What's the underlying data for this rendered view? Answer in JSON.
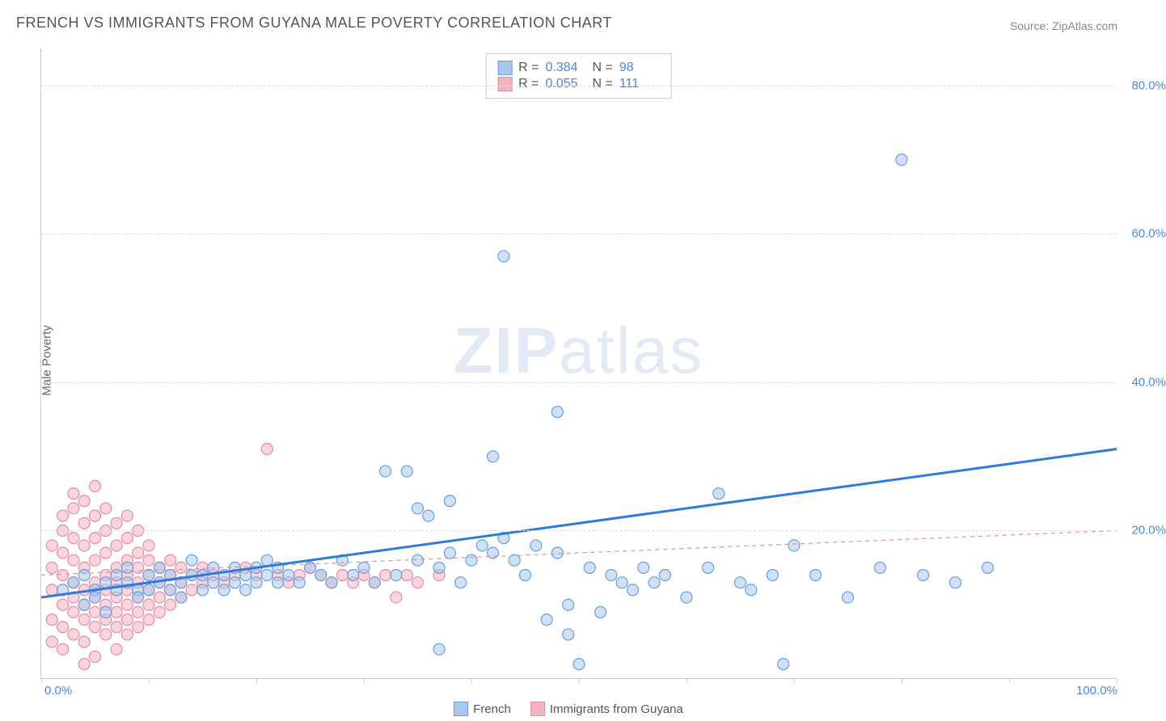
{
  "title": "FRENCH VS IMMIGRANTS FROM GUYANA MALE POVERTY CORRELATION CHART",
  "source": "Source: ZipAtlas.com",
  "y_axis_label": "Male Poverty",
  "watermark_bold": "ZIP",
  "watermark_light": "atlas",
  "chart": {
    "type": "scatter",
    "xlim": [
      0,
      100
    ],
    "ylim": [
      0,
      85
    ],
    "x_axis_start_label": "0.0%",
    "x_axis_end_label": "100.0%",
    "y_ticks": [
      20,
      40,
      60,
      80
    ],
    "y_tick_labels": [
      "20.0%",
      "40.0%",
      "60.0%",
      "80.0%"
    ],
    "x_tick_positions": [
      0,
      10,
      20,
      30,
      40,
      50,
      60,
      70,
      80,
      90,
      100
    ],
    "background_color": "#ffffff",
    "grid_color": "#dddddd",
    "axis_color": "#cccccc",
    "marker_radius": 7,
    "marker_stroke_width": 1.2,
    "trendline_width": 3,
    "trendline_dash_width": 1.2,
    "series": [
      {
        "name": "French",
        "fill": "#a9c7ec",
        "stroke": "#6b9fd9",
        "fill_opacity": 0.55,
        "trendline": {
          "x1": 0,
          "y1": 11,
          "x2": 100,
          "y2": 31,
          "color": "#2f7bd8",
          "dashed": false
        },
        "R_label": "R =",
        "R_value": "0.384",
        "N_label": "N =",
        "N_value": "98",
        "points": [
          [
            2,
            12
          ],
          [
            3,
            13
          ],
          [
            4,
            10
          ],
          [
            4,
            14
          ],
          [
            5,
            12
          ],
          [
            5,
            11
          ],
          [
            6,
            13
          ],
          [
            6,
            9
          ],
          [
            7,
            14
          ],
          [
            7,
            12
          ],
          [
            8,
            13
          ],
          [
            8,
            15
          ],
          [
            9,
            12
          ],
          [
            9,
            11
          ],
          [
            10,
            14
          ],
          [
            10,
            12
          ],
          [
            11,
            13
          ],
          [
            11,
            15
          ],
          [
            12,
            12
          ],
          [
            12,
            14
          ],
          [
            13,
            13
          ],
          [
            13,
            11
          ],
          [
            14,
            14
          ],
          [
            14,
            16
          ],
          [
            15,
            12
          ],
          [
            15,
            14
          ],
          [
            16,
            13
          ],
          [
            16,
            15
          ],
          [
            17,
            14
          ],
          [
            17,
            12
          ],
          [
            18,
            15
          ],
          [
            18,
            13
          ],
          [
            19,
            14
          ],
          [
            19,
            12
          ],
          [
            20,
            15
          ],
          [
            20,
            13
          ],
          [
            21,
            14
          ],
          [
            21,
            16
          ],
          [
            22,
            13
          ],
          [
            22,
            15
          ],
          [
            23,
            14
          ],
          [
            24,
            13
          ],
          [
            25,
            15
          ],
          [
            26,
            14
          ],
          [
            27,
            13
          ],
          [
            28,
            16
          ],
          [
            29,
            14
          ],
          [
            30,
            15
          ],
          [
            31,
            13
          ],
          [
            32,
            28
          ],
          [
            33,
            14
          ],
          [
            34,
            28
          ],
          [
            35,
            23
          ],
          [
            35,
            16
          ],
          [
            36,
            22
          ],
          [
            37,
            15
          ],
          [
            37,
            4
          ],
          [
            38,
            17
          ],
          [
            38,
            24
          ],
          [
            39,
            13
          ],
          [
            40,
            16
          ],
          [
            41,
            18
          ],
          [
            42,
            17
          ],
          [
            42,
            30
          ],
          [
            43,
            19
          ],
          [
            43,
            57
          ],
          [
            44,
            16
          ],
          [
            45,
            14
          ],
          [
            46,
            18
          ],
          [
            47,
            8
          ],
          [
            48,
            17
          ],
          [
            48,
            36
          ],
          [
            49,
            10
          ],
          [
            49,
            6
          ],
          [
            50,
            2
          ],
          [
            51,
            15
          ],
          [
            52,
            9
          ],
          [
            53,
            14
          ],
          [
            54,
            13
          ],
          [
            55,
            12
          ],
          [
            56,
            15
          ],
          [
            57,
            13
          ],
          [
            58,
            14
          ],
          [
            60,
            11
          ],
          [
            62,
            15
          ],
          [
            63,
            25
          ],
          [
            65,
            13
          ],
          [
            66,
            12
          ],
          [
            68,
            14
          ],
          [
            69,
            2
          ],
          [
            70,
            18
          ],
          [
            72,
            14
          ],
          [
            75,
            11
          ],
          [
            78,
            15
          ],
          [
            80,
            70
          ],
          [
            82,
            14
          ],
          [
            85,
            13
          ],
          [
            88,
            15
          ]
        ]
      },
      {
        "name": "Immigrants from Guyana",
        "fill": "#f4b3c2",
        "stroke": "#e88ba3",
        "fill_opacity": 0.55,
        "trendline": {
          "x1": 0,
          "y1": 14,
          "x2": 100,
          "y2": 20,
          "color": "#e88ba3",
          "dashed": true
        },
        "R_label": "R =",
        "R_value": "0.055",
        "N_label": "N =",
        "N_value": "111",
        "points": [
          [
            1,
            8
          ],
          [
            1,
            12
          ],
          [
            1,
            15
          ],
          [
            1,
            18
          ],
          [
            1,
            5
          ],
          [
            2,
            10
          ],
          [
            2,
            14
          ],
          [
            2,
            17
          ],
          [
            2,
            20
          ],
          [
            2,
            7
          ],
          [
            2,
            22
          ],
          [
            2,
            4
          ],
          [
            3,
            11
          ],
          [
            3,
            16
          ],
          [
            3,
            19
          ],
          [
            3,
            9
          ],
          [
            3,
            23
          ],
          [
            3,
            6
          ],
          [
            3,
            25
          ],
          [
            3,
            13
          ],
          [
            4,
            12
          ],
          [
            4,
            15
          ],
          [
            4,
            18
          ],
          [
            4,
            8
          ],
          [
            4,
            21
          ],
          [
            4,
            10
          ],
          [
            4,
            24
          ],
          [
            4,
            5
          ],
          [
            4,
            2
          ],
          [
            5,
            13
          ],
          [
            5,
            16
          ],
          [
            5,
            19
          ],
          [
            5,
            9
          ],
          [
            5,
            22
          ],
          [
            5,
            11
          ],
          [
            5,
            26
          ],
          [
            5,
            7
          ],
          [
            5,
            3
          ],
          [
            6,
            14
          ],
          [
            6,
            17
          ],
          [
            6,
            10
          ],
          [
            6,
            20
          ],
          [
            6,
            12
          ],
          [
            6,
            8
          ],
          [
            6,
            23
          ],
          [
            6,
            6
          ],
          [
            7,
            15
          ],
          [
            7,
            11
          ],
          [
            7,
            18
          ],
          [
            7,
            9
          ],
          [
            7,
            21
          ],
          [
            7,
            13
          ],
          [
            7,
            7
          ],
          [
            7,
            4
          ],
          [
            8,
            14
          ],
          [
            8,
            16
          ],
          [
            8,
            10
          ],
          [
            8,
            19
          ],
          [
            8,
            12
          ],
          [
            8,
            8
          ],
          [
            8,
            22
          ],
          [
            8,
            6
          ],
          [
            9,
            15
          ],
          [
            9,
            11
          ],
          [
            9,
            17
          ],
          [
            9,
            13
          ],
          [
            9,
            9
          ],
          [
            9,
            20
          ],
          [
            9,
            7
          ],
          [
            10,
            14
          ],
          [
            10,
            12
          ],
          [
            10,
            16
          ],
          [
            10,
            10
          ],
          [
            10,
            18
          ],
          [
            10,
            8
          ],
          [
            11,
            13
          ],
          [
            11,
            15
          ],
          [
            11,
            11
          ],
          [
            11,
            9
          ],
          [
            12,
            14
          ],
          [
            12,
            12
          ],
          [
            12,
            16
          ],
          [
            12,
            10
          ],
          [
            13,
            13
          ],
          [
            13,
            15
          ],
          [
            13,
            11
          ],
          [
            14,
            14
          ],
          [
            14,
            12
          ],
          [
            15,
            13
          ],
          [
            15,
            15
          ],
          [
            16,
            14
          ],
          [
            17,
            13
          ],
          [
            18,
            14
          ],
          [
            19,
            15
          ],
          [
            20,
            14
          ],
          [
            21,
            31
          ],
          [
            22,
            14
          ],
          [
            23,
            13
          ],
          [
            24,
            14
          ],
          [
            25,
            15
          ],
          [
            26,
            14
          ],
          [
            27,
            13
          ],
          [
            28,
            14
          ],
          [
            29,
            13
          ],
          [
            30,
            14
          ],
          [
            31,
            13
          ],
          [
            32,
            14
          ],
          [
            33,
            11
          ],
          [
            34,
            14
          ],
          [
            35,
            13
          ],
          [
            37,
            14
          ]
        ]
      }
    ]
  },
  "legend": {
    "series1_label": "French",
    "series2_label": "Immigrants from Guyana"
  }
}
